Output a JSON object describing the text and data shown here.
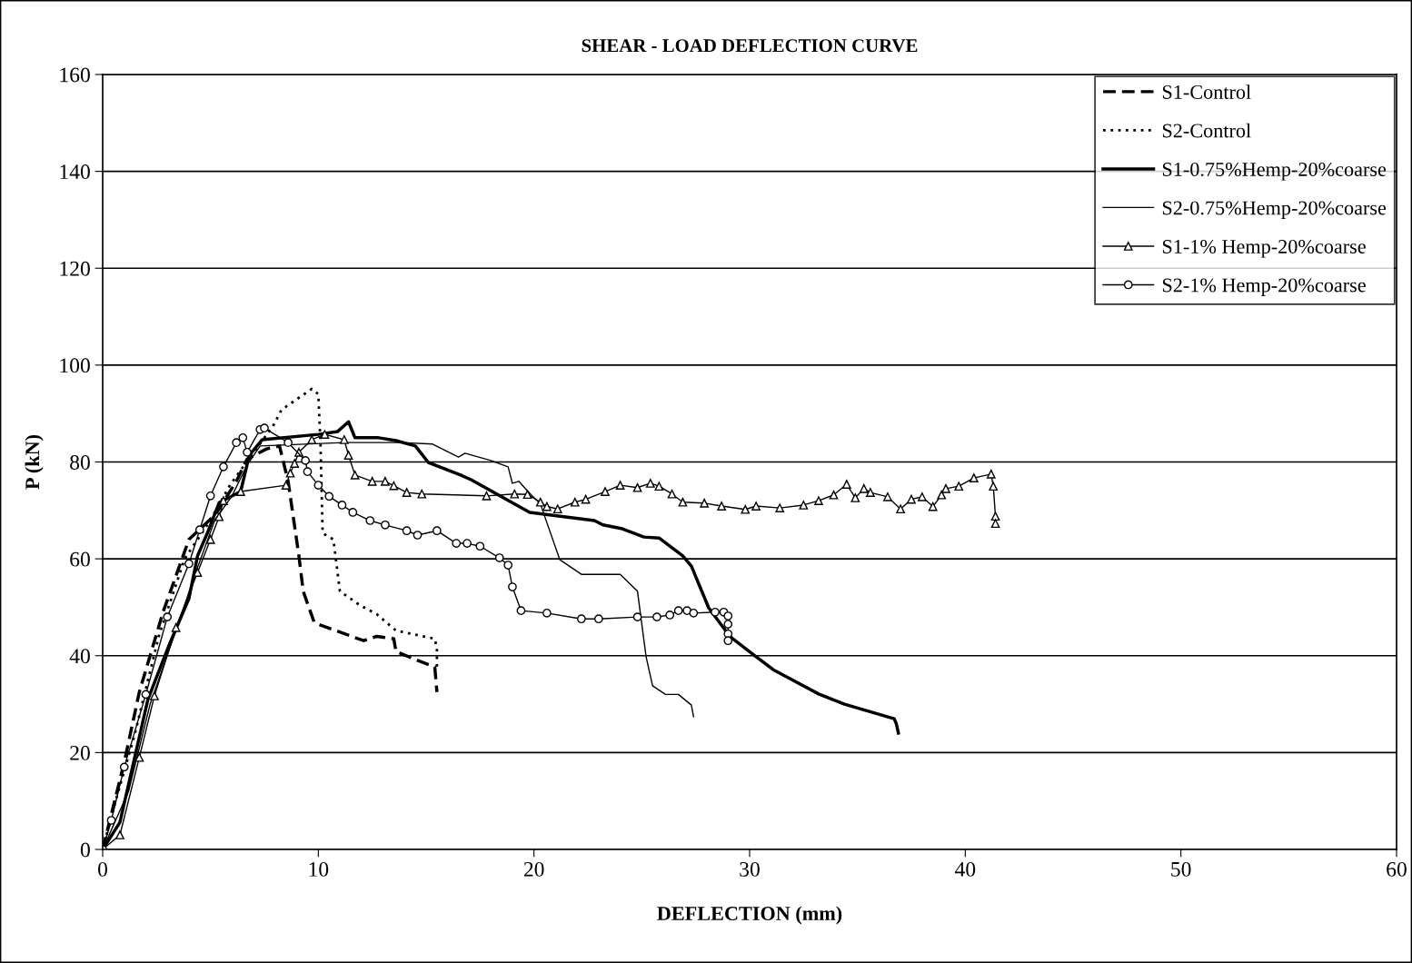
{
  "chart_data": {
    "type": "line",
    "title": "SHEAR - LOAD DEFLECTION CURVE",
    "xlabel": "DEFLECTION (mm)",
    "ylabel": "P (kN)",
    "xlim": [
      0,
      60
    ],
    "xticks": [
      0,
      10,
      20,
      30,
      40,
      50,
      60
    ],
    "ylim": [
      0,
      160
    ],
    "yticks": [
      0,
      20,
      40,
      60,
      80,
      100,
      120,
      140,
      160
    ],
    "grid": "y",
    "legend": "top right",
    "series": [
      {
        "name": "S1-Control",
        "color": "#000000",
        "line_style": "dashed",
        "marker": "none",
        "x": [
          0,
          0.5,
          1,
          1.7,
          2.8,
          4,
          5.2,
          6.2,
          6.7,
          7.6,
          8.2,
          8.6,
          9.1,
          9.3,
          9.8,
          10,
          12.1,
          12.7,
          13.5,
          13.6,
          14.5,
          15.4,
          15.5
        ],
        "values": [
          0,
          9,
          18,
          32.5,
          49,
          64,
          69,
          76,
          80.6,
          82.7,
          83.3,
          76,
          60.6,
          53.3,
          47,
          46.5,
          43.1,
          44,
          43.5,
          40.9,
          39.2,
          37.7,
          32.5
        ]
      },
      {
        "name": "S2-Control",
        "color": "#000000",
        "line_style": "dotted",
        "marker": "none",
        "x": [
          0,
          0.6,
          1.5,
          2.6,
          3.8,
          5,
          5.9,
          7,
          7.9,
          8.3,
          9.7,
          10,
          10.1,
          10.2,
          10.7,
          11,
          11.9,
          12.7,
          13.6,
          15.4,
          15.5,
          15.5
        ],
        "values": [
          0,
          10,
          24,
          44,
          60,
          68,
          75.2,
          82,
          87.4,
          90.8,
          95.1,
          94,
          84,
          65.3,
          64,
          53.3,
          50.5,
          48.6,
          45.2,
          43.5,
          41.5,
          37.7
        ]
      },
      {
        "name": "S1-0.75%Hemp-20%coarse",
        "color": "#000000",
        "line_style": "solid",
        "marker": "none",
        "x": [
          0,
          0.8,
          2.1,
          3.1,
          4,
          4.4,
          4.9,
          5.4,
          6.4,
          6.8,
          7.4,
          10,
          10.9,
          11.4,
          11.7,
          12.8,
          13.6,
          14.5,
          15.1,
          16.6,
          17.1,
          19.8,
          22.8,
          23.2,
          24.1,
          25.1,
          25.8,
          26.9,
          27.3,
          28.1,
          29.1,
          30.3,
          31.1,
          33.2,
          34.4,
          36.7,
          36.8,
          36.9
        ],
        "values": [
          0,
          5.6,
          31,
          42.4,
          51.8,
          60.6,
          65.8,
          71.6,
          73.9,
          81.4,
          84.6,
          85.7,
          86.3,
          88.3,
          85,
          85,
          84.4,
          83.3,
          79.9,
          77.3,
          76.3,
          69.6,
          67.9,
          67,
          66.2,
          64.5,
          64.3,
          60.6,
          58.5,
          49.9,
          43.9,
          39.8,
          37.1,
          32.1,
          30,
          27,
          26,
          24
        ]
      },
      {
        "name": "S2-0.75%Hemp-20%coarse",
        "color": "#000000",
        "line_style": "solid",
        "marker": "none",
        "x": [
          0,
          1.2,
          2.2,
          3.3,
          4.3,
          5.2,
          6,
          6.7,
          7.3,
          11.2,
          12.9,
          13.8,
          15.3,
          16.5,
          16.8,
          18,
          18.8,
          19,
          19.3,
          19.7,
          20.3,
          21.2,
          22.2,
          24,
          24.8,
          25.2,
          25.5,
          26.1,
          26.7,
          27.3,
          27.4
        ],
        "values": [
          0,
          12,
          30,
          44,
          57,
          68,
          73,
          79.4,
          83.3,
          84,
          84,
          84,
          83.7,
          81,
          81.8,
          80.3,
          79,
          75.6,
          76,
          74,
          71.3,
          59.8,
          56.8,
          56.8,
          53.3,
          39.8,
          33.8,
          32,
          32,
          29.8,
          27.4
        ]
      },
      {
        "name": "S1-1% Hemp-20%coarse",
        "color": "#000000",
        "line_style": "solid",
        "marker": "triangle",
        "x": [
          0,
          0.8,
          1.7,
          2.4,
          3.4,
          4.4,
          5,
          5.4,
          5.6,
          6.4,
          8.5,
          8.7,
          8.9,
          9.1,
          9.7,
          10.3,
          11.2,
          11.4,
          11.7,
          12.5,
          13.1,
          13.5,
          14.1,
          14.8,
          17.8,
          19.1,
          19.7,
          20.3,
          20.6,
          21.1,
          21.9,
          22.4,
          23.3,
          24,
          24.8,
          25.4,
          25.8,
          26.4,
          26.9,
          27.9,
          28.7,
          29.8,
          30.3,
          31.4,
          32.5,
          33.2,
          33.9,
          34.5,
          34.9,
          35.3,
          35.6,
          36.4,
          37,
          37.5,
          38,
          38.5,
          38.9,
          39.1,
          39.7,
          40.4,
          41.2,
          41.3,
          41.4,
          41.4
        ],
        "values": [
          0,
          3,
          19,
          31.7,
          45.8,
          57.2,
          64,
          68.7,
          72,
          73.9,
          75.2,
          77.7,
          79.7,
          82,
          84.6,
          85.7,
          84.6,
          81.4,
          77.3,
          76,
          76,
          75.1,
          73.7,
          73.4,
          73,
          73.4,
          73.3,
          71.7,
          70.8,
          70.3,
          71.7,
          72.3,
          73.9,
          75.2,
          74.7,
          75.6,
          75,
          73.4,
          71.7,
          71.5,
          70.9,
          70.2,
          70.9,
          70.5,
          71.1,
          72,
          73.2,
          75.4,
          72.6,
          74.5,
          73.7,
          72.8,
          70.3,
          72.3,
          72.8,
          70.8,
          73.2,
          74.5,
          75,
          76.7,
          77.5,
          75,
          68.8,
          67.3
        ]
      },
      {
        "name": "S2-1% Hemp-20%coarse",
        "color": "#000000",
        "line_style": "solid",
        "marker": "circle",
        "x": [
          0,
          0.4,
          1,
          2,
          3,
          4,
          4.5,
          5,
          5.6,
          6.2,
          6.5,
          6.7,
          7.3,
          7.5,
          8.6,
          9.4,
          9.5,
          10,
          10.5,
          11.1,
          11.6,
          12.4,
          13.1,
          14.1,
          14.6,
          15.5,
          16.4,
          16.9,
          17.5,
          18.4,
          18.8,
          19,
          19.4,
          20.6,
          22.2,
          23,
          24.8,
          25.7,
          26.3,
          26.7,
          27.1,
          27.4,
          28.4,
          28.8,
          29,
          29,
          29,
          29
        ],
        "values": [
          0,
          6,
          17,
          32,
          48,
          59,
          66,
          73,
          79,
          84,
          85,
          82,
          86.7,
          87,
          84,
          80.3,
          78,
          75.2,
          72.9,
          71.1,
          69.6,
          67.9,
          67,
          65.8,
          64.9,
          65.8,
          63.2,
          63.2,
          62.6,
          60.2,
          58.7,
          54.2,
          49.3,
          48.8,
          47.6,
          47.6,
          48,
          48,
          48.4,
          49.3,
          49.3,
          48.8,
          49,
          49,
          48.2,
          46.5,
          44.5,
          43.1
        ]
      }
    ]
  }
}
